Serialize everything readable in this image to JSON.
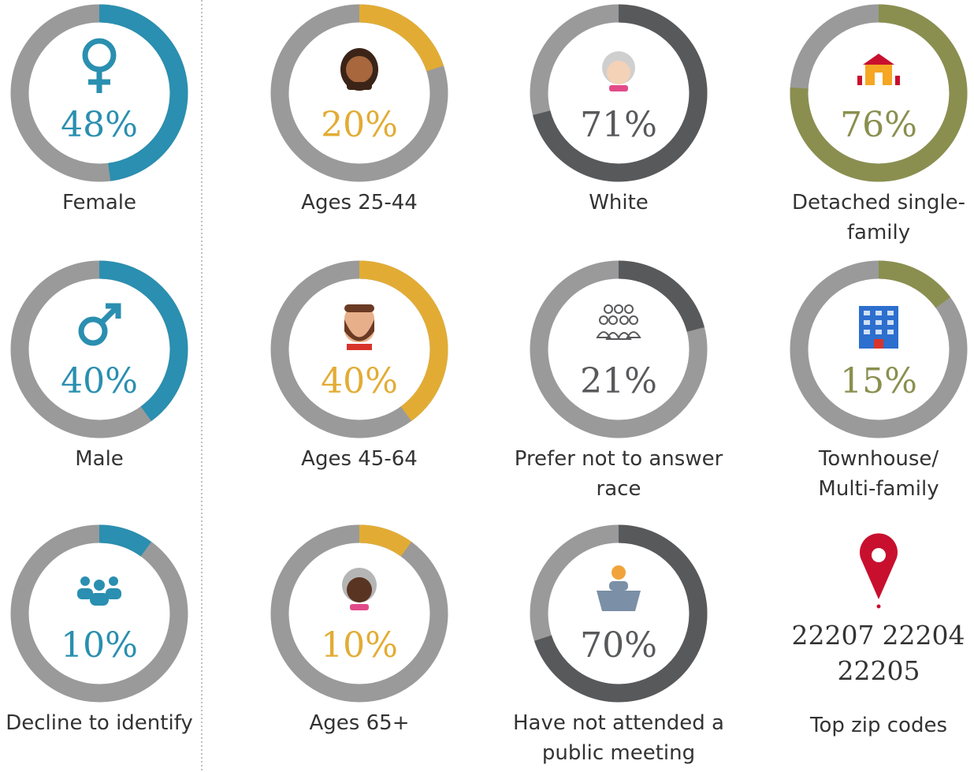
{
  "track_color": "#9a9a9a",
  "chart_data": [
    {
      "type": "donut",
      "values": [
        48
      ],
      "value_labels": [
        "48%"
      ],
      "label": [
        "Female"
      ],
      "color": "#2a8fb0",
      "ylim": [
        0,
        100
      ]
    },
    {
      "type": "donut",
      "values": [
        40
      ],
      "value_labels": [
        "40%"
      ],
      "label": [
        "Male"
      ],
      "color": "#2a8fb0",
      "ylim": [
        0,
        100
      ]
    },
    {
      "type": "donut",
      "values": [
        10
      ],
      "value_labels": [
        "10%"
      ],
      "label": [
        "Decline to identify"
      ],
      "color": "#2a8fb0",
      "ylim": [
        0,
        100
      ]
    },
    {
      "type": "donut",
      "values": [
        20
      ],
      "value_labels": [
        "20%"
      ],
      "label": [
        "Ages 25-44"
      ],
      "color": "#e2ac34",
      "ylim": [
        0,
        100
      ]
    },
    {
      "type": "donut",
      "values": [
        40
      ],
      "value_labels": [
        "40%"
      ],
      "label": [
        "Ages 45-64"
      ],
      "color": "#e2ac34",
      "ylim": [
        0,
        100
      ]
    },
    {
      "type": "donut",
      "values": [
        10
      ],
      "value_labels": [
        "10%"
      ],
      "label": [
        "Ages 65+"
      ],
      "color": "#e2ac34",
      "ylim": [
        0,
        100
      ]
    },
    {
      "type": "donut",
      "values": [
        71
      ],
      "value_labels": [
        "71%"
      ],
      "label": [
        "White"
      ],
      "color": "#58595b",
      "ylim": [
        0,
        100
      ]
    },
    {
      "type": "donut",
      "values": [
        21
      ],
      "value_labels": [
        "21%"
      ],
      "label": [
        "Prefer not to answer",
        "race"
      ],
      "color": "#58595b",
      "ylim": [
        0,
        100
      ]
    },
    {
      "type": "donut",
      "values": [
        70
      ],
      "value_labels": [
        "70%"
      ],
      "label": [
        "Have not attended a",
        "public meeting"
      ],
      "color": "#58595b",
      "ylim": [
        0,
        100
      ]
    },
    {
      "type": "donut",
      "values": [
        76
      ],
      "value_labels": [
        "76%"
      ],
      "label": [
        "Detached single-",
        "family"
      ],
      "color": "#8a8f4f",
      "ylim": [
        0,
        100
      ]
    },
    {
      "type": "donut",
      "values": [
        15
      ],
      "value_labels": [
        "15%"
      ],
      "label": [
        "Townhouse/",
        "Multi-family"
      ],
      "color": "#8a8f4f",
      "ylim": [
        0,
        100
      ]
    }
  ],
  "zip_codes": {
    "codes": [
      "22207",
      "22204",
      "22205"
    ],
    "label": "Top zip codes"
  }
}
